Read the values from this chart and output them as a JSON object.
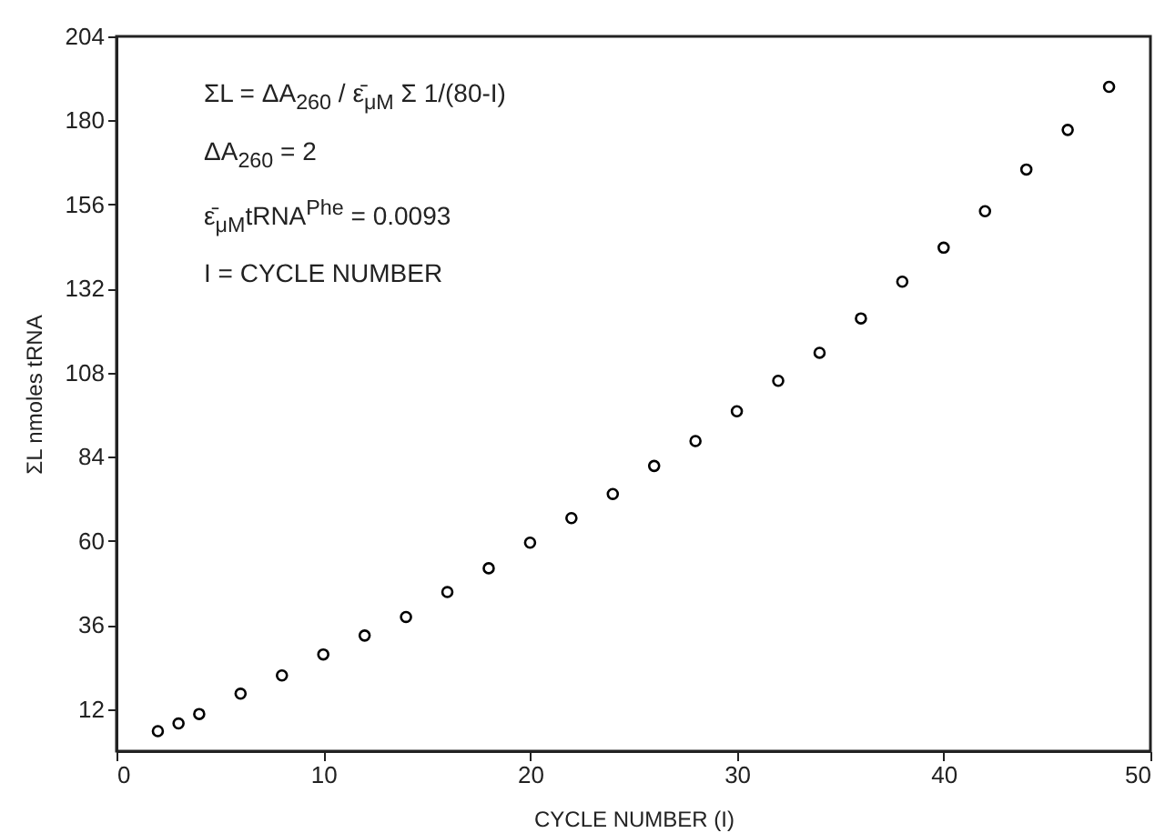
{
  "chart_data": {
    "type": "scatter",
    "xlabel": "CYCLE NUMBER (I)",
    "ylabel": "ΣL  nmoles tRNA",
    "annotations": [
      "ΣL = ΔA$_{260}$ / ε̄$_{μM}$ Σ 1/(80-I)",
      "ΔA$_{260}$ = 2",
      "ε̄$_{μM}$tRNA$^{Phe}$ = 0.0093",
      "I = CYCLE NUMBER"
    ],
    "x": [
      2,
      3,
      4,
      6,
      8,
      10,
      12,
      14,
      16,
      18,
      20,
      22,
      24,
      26,
      28,
      30,
      32,
      34,
      36,
      38,
      40,
      42,
      44,
      46,
      48
    ],
    "series": [
      {
        "color": "#000000",
        "values": [
          5.7,
          7.9,
          10.6,
          16.4,
          21.6,
          27.6,
          33,
          38.3,
          45.4,
          52.2,
          59.5,
          66.5,
          73.4,
          81.4,
          88.5,
          97,
          105.7,
          113.7,
          123.5,
          134,
          143.7,
          154.1,
          166,
          177.3,
          189.6
        ]
      }
    ],
    "xlim": [
      0,
      50
    ],
    "xticks": [
      0,
      10,
      20,
      30,
      40,
      50
    ],
    "ylim": [
      0,
      204
    ],
    "yticks": [
      12,
      36,
      60,
      84,
      108,
      132,
      156,
      180,
      204
    ],
    "marker": "circle"
  }
}
